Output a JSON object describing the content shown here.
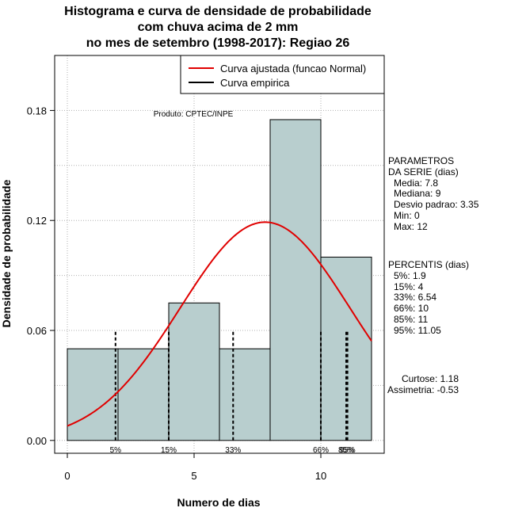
{
  "title": [
    "Histograma e curva de densidade de probabilidade",
    "com chuva acima de 2 mm",
    "no mes de setembro (1998-2017): Regiao 26"
  ],
  "product_label": "Produto: CPTEC/INPE",
  "legend": [
    {
      "label": "Curva ajustada (funcao Normal)",
      "color": "#e00000"
    },
    {
      "label": "Curva empirica",
      "color": "#000000"
    }
  ],
  "parameters": {
    "heading": [
      "PARAMETROS",
      "DA SERIE (dias)"
    ],
    "items": [
      "Media: 7.8",
      "Mediana: 9",
      "Desvio padrao: 3.35",
      "Min: 0",
      "Max: 12"
    ]
  },
  "percentiles_panel": {
    "heading": "PERCENTIS (dias)",
    "items": [
      "5%: 1.9",
      "15%: 4",
      "33%: 6.54",
      "66%: 10",
      "85%: 11",
      "95%: 11.05"
    ]
  },
  "shape_stats": [
    "Curtose: 1.18",
    "Assimetria: -0.53"
  ],
  "colors": {
    "bar_fill": "#b8cece",
    "curve": "#e00000",
    "grid": "#b0b0b0"
  },
  "chart_data": {
    "type": "bar",
    "xlabel": "Numero de dias",
    "ylabel": "Densidade de probabilidade",
    "xlim": [
      -0.5,
      12.5
    ],
    "ylim": [
      -0.007,
      0.21
    ],
    "x_ticks": [
      0,
      5,
      10
    ],
    "y_ticks": [
      0.0,
      0.06,
      0.12,
      0.18
    ],
    "y_tick_labels": [
      "0.00",
      "0.06",
      "0.12",
      "0.18"
    ],
    "grid": true,
    "bins": [
      {
        "from": 0,
        "to": 2,
        "density": 0.05
      },
      {
        "from": 2,
        "to": 4,
        "density": 0.05
      },
      {
        "from": 4,
        "to": 6,
        "density": 0.075
      },
      {
        "from": 6,
        "to": 8,
        "density": 0.05
      },
      {
        "from": 8,
        "to": 10,
        "density": 0.175
      },
      {
        "from": 10,
        "to": 12,
        "density": 0.1
      }
    ],
    "normal_fit": {
      "mean": 7.8,
      "sd": 3.35,
      "x_range": [
        0,
        12
      ]
    },
    "percentile_marks": [
      {
        "label": "5%",
        "x": 1.9
      },
      {
        "label": "15%",
        "x": 4
      },
      {
        "label": "33%",
        "x": 6.54
      },
      {
        "label": "66%",
        "x": 10
      },
      {
        "label": "85%",
        "x": 11
      },
      {
        "label": "95%",
        "x": 11.05
      }
    ]
  }
}
